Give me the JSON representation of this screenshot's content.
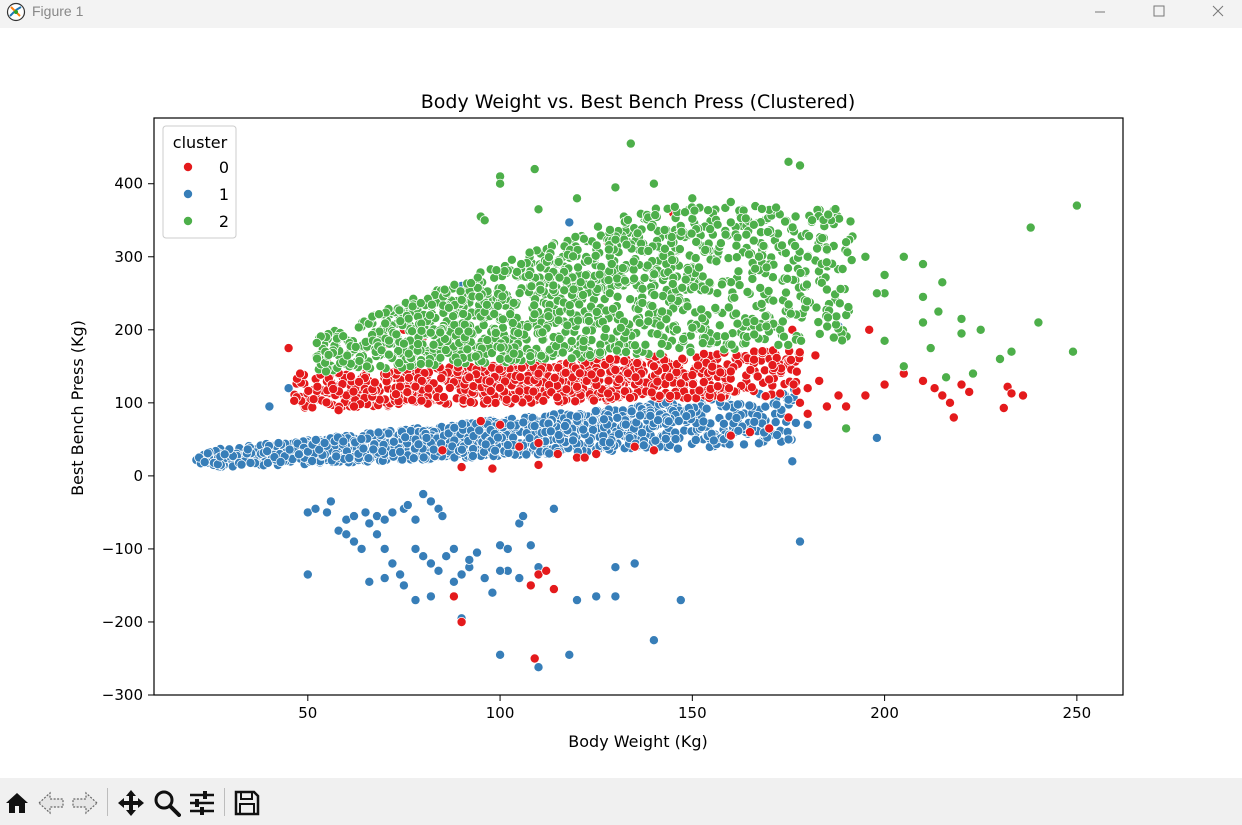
{
  "window": {
    "title": "Figure 1",
    "icons": [
      "app-icon",
      "minimize-icon",
      "maximize-icon",
      "close-icon"
    ]
  },
  "toolbar": {
    "icons": [
      "home-icon",
      "back-arrow-icon",
      "forward-arrow-icon",
      "pan-icon",
      "zoom-icon",
      "configure-subplots-icon",
      "save-icon"
    ]
  },
  "chart_data": {
    "type": "scatter",
    "title": "Body Weight vs. Best Bench Press (Clustered)",
    "xlabel": "Body Weight (Kg)",
    "ylabel": "Best Bench Press (Kg)",
    "xlim": [
      10,
      262
    ],
    "ylim": [
      -300,
      490
    ],
    "xticks": [
      50,
      100,
      150,
      200,
      250
    ],
    "yticks": [
      -300,
      -200,
      -100,
      0,
      100,
      200,
      300,
      400
    ],
    "ytick_labels": [
      "−300",
      "−200",
      "−100",
      "0",
      "100",
      "200",
      "300",
      "400"
    ],
    "grid": false,
    "legend": {
      "title": "cluster",
      "placement": "top-left"
    },
    "series": [
      {
        "name": "0",
        "color": "#e41a1c",
        "bands": [
          {
            "x_min": 46,
            "x_max": 178,
            "y_low_a": 85,
            "y_low_b": 0.14,
            "y_high_a": 125,
            "y_high_b": 0.28,
            "n": 900
          }
        ],
        "points": [
          [
            45,
            175
          ],
          [
            48,
            140
          ],
          [
            55,
            160
          ],
          [
            60,
            165
          ],
          [
            65,
            175
          ],
          [
            70,
            180
          ],
          [
            75,
            200
          ],
          [
            80,
            190
          ],
          [
            58,
            90
          ],
          [
            62,
            95
          ],
          [
            95,
            75
          ],
          [
            100,
            70
          ],
          [
            105,
            40
          ],
          [
            110,
            45
          ],
          [
            115,
            30
          ],
          [
            120,
            25
          ],
          [
            125,
            30
          ],
          [
            135,
            40
          ],
          [
            140,
            35
          ],
          [
            160,
            55
          ],
          [
            165,
            60
          ],
          [
            170,
            65
          ],
          [
            175,
            80
          ],
          [
            180,
            85
          ],
          [
            185,
            95
          ],
          [
            190,
            95
          ],
          [
            195,
            110
          ],
          [
            200,
            125
          ],
          [
            205,
            140
          ],
          [
            210,
            130
          ],
          [
            213,
            120
          ],
          [
            215,
            110
          ],
          [
            217,
            100
          ],
          [
            218,
            80
          ],
          [
            220,
            125
          ],
          [
            222,
            115
          ],
          [
            231,
            93
          ],
          [
            232,
            122
          ],
          [
            233,
            113
          ],
          [
            236,
            110
          ],
          [
            90,
            12
          ],
          [
            98,
            10
          ],
          [
            110,
            15
          ],
          [
            122,
            25
          ],
          [
            85,
            35
          ],
          [
            178,
            100
          ],
          [
            180,
            120
          ],
          [
            182,
            165
          ],
          [
            183,
            130
          ],
          [
            188,
            110
          ],
          [
            92,
            135
          ],
          [
            110,
            140
          ],
          [
            120,
            122
          ],
          [
            130,
            145
          ],
          [
            140,
            150
          ],
          [
            150,
            138
          ],
          [
            160,
            143
          ],
          [
            170,
            132
          ],
          [
            128,
            320
          ],
          [
            145,
            360
          ],
          [
            176,
            200
          ],
          [
            196,
            200
          ],
          [
            88,
            -165
          ],
          [
            90,
            -200
          ],
          [
            108,
            -150
          ],
          [
            110,
            -135
          ],
          [
            112,
            -130
          ],
          [
            114,
            -155
          ],
          [
            109,
            -250
          ]
        ]
      },
      {
        "name": "1",
        "color": "#377eb8",
        "bands": [
          {
            "x_min": 21,
            "x_max": 177,
            "y_low_a": 5,
            "y_low_b": 0.22,
            "y_high_a": 22,
            "y_high_b": 0.55,
            "n": 1300
          }
        ],
        "points": [
          [
            50,
            -50
          ],
          [
            52,
            -45
          ],
          [
            55,
            -50
          ],
          [
            56,
            -35
          ],
          [
            60,
            -60
          ],
          [
            62,
            -55
          ],
          [
            65,
            -50
          ],
          [
            58,
            -75
          ],
          [
            60,
            -80
          ],
          [
            62,
            -90
          ],
          [
            64,
            -100
          ],
          [
            66,
            -65
          ],
          [
            68,
            -55
          ],
          [
            70,
            -60
          ],
          [
            72,
            -50
          ],
          [
            75,
            -45
          ],
          [
            76,
            -40
          ],
          [
            78,
            -60
          ],
          [
            80,
            -25
          ],
          [
            82,
            -35
          ],
          [
            84,
            -45
          ],
          [
            85,
            -55
          ],
          [
            68,
            -80
          ],
          [
            70,
            -100
          ],
          [
            72,
            -120
          ],
          [
            74,
            -135
          ],
          [
            75,
            -150
          ],
          [
            78,
            -100
          ],
          [
            80,
            -110
          ],
          [
            82,
            -120
          ],
          [
            84,
            -130
          ],
          [
            86,
            -110
          ],
          [
            88,
            -100
          ],
          [
            88,
            -145
          ],
          [
            90,
            -135
          ],
          [
            92,
            -125
          ],
          [
            94,
            -105
          ],
          [
            96,
            -140
          ],
          [
            100,
            -95
          ],
          [
            102,
            -100
          ],
          [
            105,
            -65
          ],
          [
            106,
            -55
          ],
          [
            108,
            -95
          ],
          [
            110,
            -125
          ],
          [
            114,
            -45
          ],
          [
            120,
            -170
          ],
          [
            125,
            -165
          ],
          [
            130,
            -125
          ],
          [
            135,
            -120
          ],
          [
            140,
            -225
          ],
          [
            147,
            -170
          ],
          [
            100,
            -245
          ],
          [
            110,
            -262
          ],
          [
            118,
            -245
          ],
          [
            50,
            -135
          ],
          [
            66,
            -145
          ],
          [
            70,
            -140
          ],
          [
            78,
            -170
          ],
          [
            82,
            -165
          ],
          [
            92,
            -115
          ],
          [
            98,
            -160
          ],
          [
            102,
            -130
          ],
          [
            105,
            -140
          ],
          [
            130,
            -165
          ],
          [
            178,
            -90
          ],
          [
            90,
            -195
          ],
          [
            100,
            -130
          ],
          [
            175,
            50
          ],
          [
            176,
            20
          ],
          [
            180,
            70
          ],
          [
            198,
            52
          ],
          [
            188,
            205
          ],
          [
            118,
            347
          ],
          [
            90,
            260
          ],
          [
            45,
            120
          ],
          [
            40,
            95
          ]
        ]
      },
      {
        "name": "2",
        "color": "#4daf4a",
        "bands": [
          {
            "x_min": 52,
            "x_max": 192,
            "y_low_a": 127,
            "y_low_b": 0.28,
            "y_high_a": 80,
            "y_high_b": 2.1,
            "y_cap": 370,
            "n": 1400
          }
        ],
        "points": [
          [
            100,
            410
          ],
          [
            100,
            400
          ],
          [
            109,
            420
          ],
          [
            134,
            455
          ],
          [
            175,
            430
          ],
          [
            178,
            425
          ],
          [
            190,
            320
          ],
          [
            195,
            300
          ],
          [
            200,
            275
          ],
          [
            210,
            290
          ],
          [
            215,
            265
          ],
          [
            220,
            215
          ],
          [
            225,
            200
          ],
          [
            230,
            160
          ],
          [
            233,
            170
          ],
          [
            238,
            340
          ],
          [
            240,
            210
          ],
          [
            250,
            370
          ],
          [
            249,
            170
          ],
          [
            190,
            65
          ],
          [
            200,
            185
          ],
          [
            205,
            150
          ],
          [
            212,
            175
          ],
          [
            216,
            135
          ],
          [
            200,
            250
          ],
          [
            205,
            300
          ],
          [
            210,
            210
          ],
          [
            180,
            300
          ],
          [
            160,
            375
          ],
          [
            150,
            380
          ],
          [
            140,
            400
          ],
          [
            130,
            395
          ],
          [
            120,
            380
          ],
          [
            110,
            365
          ],
          [
            95,
            355
          ],
          [
            96,
            350
          ],
          [
            185,
            310
          ],
          [
            210,
            245
          ],
          [
            214,
            225
          ],
          [
            220,
            195
          ],
          [
            223,
            140
          ],
          [
            198,
            250
          ],
          [
            185,
            255
          ]
        ]
      }
    ]
  }
}
